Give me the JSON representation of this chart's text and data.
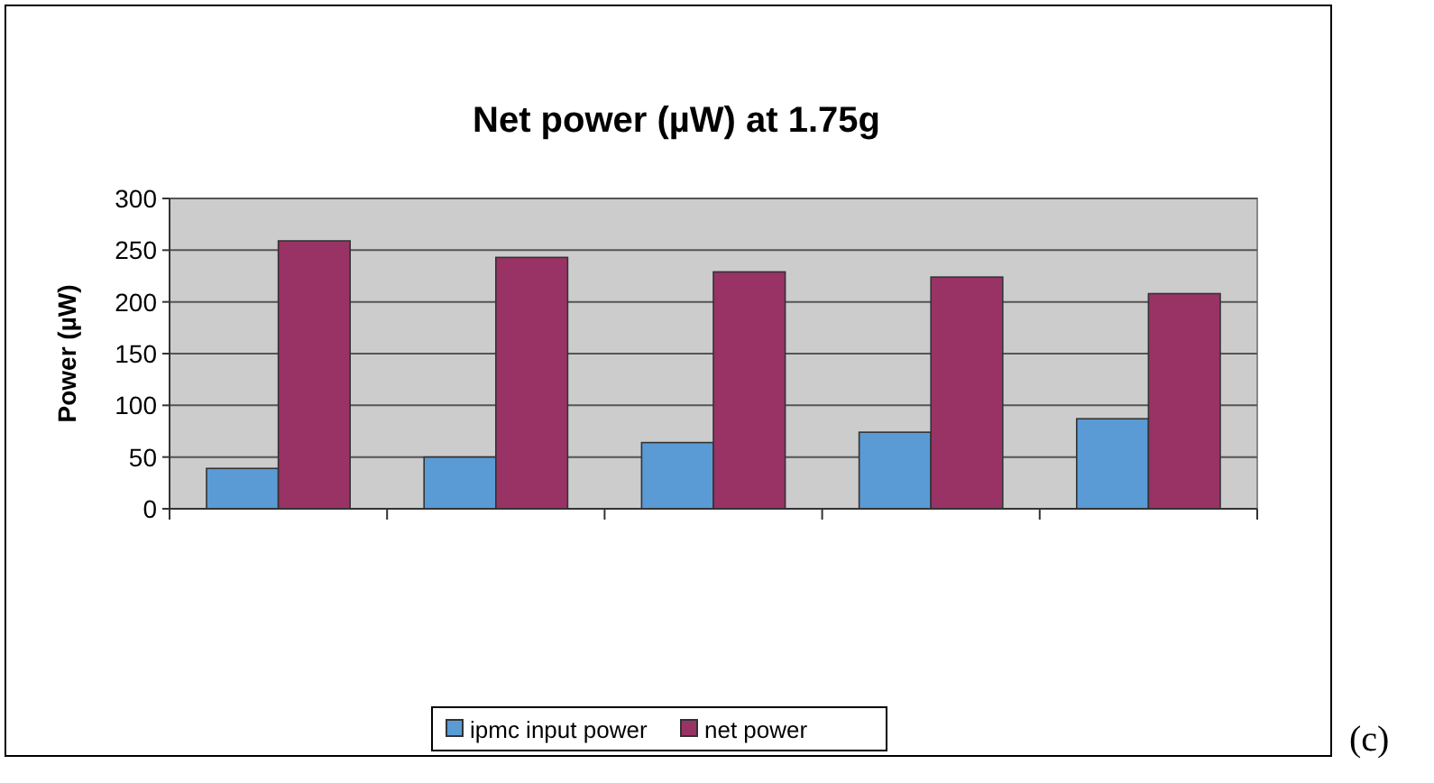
{
  "chart_data": {
    "type": "bar",
    "title": "Net power (µW) at 1.75g",
    "ylabel": "Power (µW)",
    "categories": [
      null,
      null,
      null,
      null,
      null
    ],
    "series": [
      {
        "name": "ipmc input power",
        "color": "#5b9bd5",
        "values": [
          39,
          50,
          64,
          74,
          87
        ]
      },
      {
        "name": "net power",
        "color": "#993366",
        "values": [
          259,
          243,
          229,
          224,
          208
        ]
      }
    ],
    "ylim": [
      0,
      300
    ],
    "yticks": [
      0,
      50,
      100,
      150,
      200,
      250,
      300
    ],
    "grid": "y",
    "legend": "bottom",
    "annotations": [
      "(c)"
    ]
  }
}
